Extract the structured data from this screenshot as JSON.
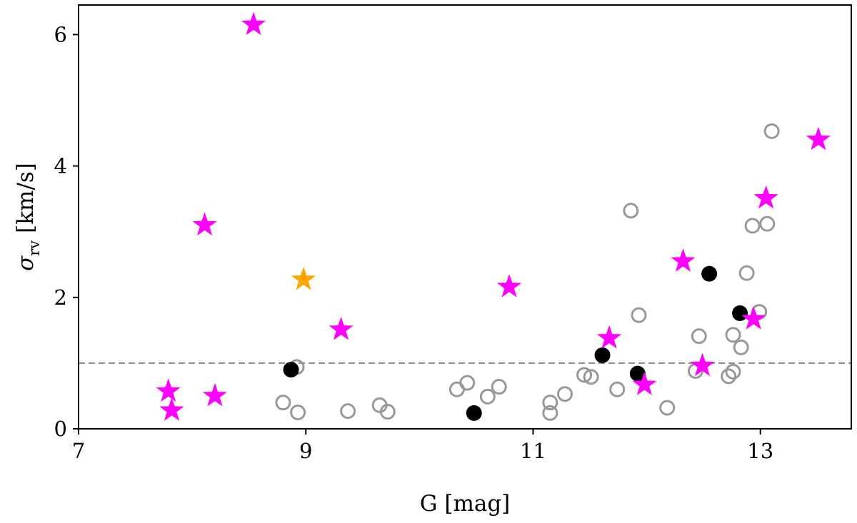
{
  "chart_data": {
    "type": "scatter",
    "title": "",
    "xlabel": "G [mag]",
    "ylabel_symbol": "σ",
    "ylabel_subscript": "rv",
    "ylabel_unit": "[km/s]",
    "xlim": [
      7,
      13.8
    ],
    "ylim": [
      0,
      6.45
    ],
    "xticks": [
      7,
      9,
      11,
      13
    ],
    "yticks": [
      0,
      2,
      4,
      6
    ],
    "reference_line": {
      "y": 1.0,
      "style": "dashed",
      "color": "#888888"
    },
    "colors": {
      "magenta_star": "#ff00ff",
      "orange_star": "#ffa500",
      "open_circle": "#999999",
      "filled_circle": "#000000"
    },
    "series": [
      {
        "name": "gray open circles",
        "marker": "open-circle",
        "points": [
          [
            8.8,
            0.4
          ],
          [
            8.92,
            0.94
          ],
          [
            8.93,
            0.25
          ],
          [
            9.37,
            0.27
          ],
          [
            9.65,
            0.36
          ],
          [
            9.72,
            0.26
          ],
          [
            10.33,
            0.6
          ],
          [
            10.42,
            0.7
          ],
          [
            10.6,
            0.49
          ],
          [
            10.7,
            0.64
          ],
          [
            11.15,
            0.4
          ],
          [
            11.15,
            0.24
          ],
          [
            11.28,
            0.53
          ],
          [
            11.45,
            0.82
          ],
          [
            11.51,
            0.79
          ],
          [
            11.74,
            0.6
          ],
          [
            11.86,
            3.32
          ],
          [
            11.93,
            1.73
          ],
          [
            12.18,
            0.32
          ],
          [
            12.43,
            0.88
          ],
          [
            12.46,
            1.41
          ],
          [
            12.72,
            0.8
          ],
          [
            12.76,
            0.87
          ],
          [
            12.76,
            1.43
          ],
          [
            12.83,
            1.24
          ],
          [
            12.88,
            2.37
          ],
          [
            12.93,
            3.09
          ],
          [
            12.99,
            1.78
          ],
          [
            13.06,
            3.12
          ],
          [
            13.1,
            4.53
          ]
        ]
      },
      {
        "name": "black filled circles",
        "marker": "filled-circle",
        "points": [
          [
            8.87,
            0.9
          ],
          [
            10.48,
            0.24
          ],
          [
            11.61,
            1.12
          ],
          [
            11.92,
            0.84
          ],
          [
            12.55,
            2.36
          ],
          [
            12.82,
            1.76
          ]
        ]
      },
      {
        "name": "magenta stars",
        "marker": "star",
        "points": [
          [
            7.79,
            0.57
          ],
          [
            7.82,
            0.28
          ],
          [
            8.11,
            3.1
          ],
          [
            8.2,
            0.5
          ],
          [
            8.54,
            6.15
          ],
          [
            9.31,
            1.51
          ],
          [
            10.79,
            2.16
          ],
          [
            11.67,
            1.38
          ],
          [
            11.98,
            0.67
          ],
          [
            12.32,
            2.55
          ],
          [
            12.49,
            0.96
          ],
          [
            12.94,
            1.67
          ],
          [
            13.05,
            3.51
          ],
          [
            13.51,
            4.4
          ]
        ]
      },
      {
        "name": "orange star",
        "marker": "star",
        "points": [
          [
            8.98,
            2.27
          ]
        ]
      }
    ]
  }
}
